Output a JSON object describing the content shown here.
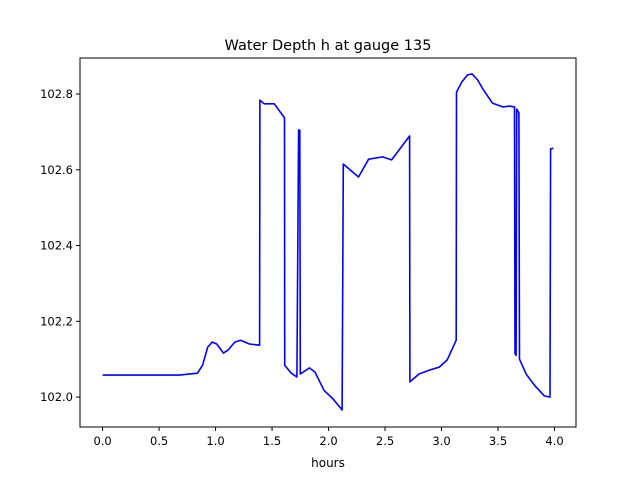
{
  "chart_data": {
    "type": "line",
    "title": "Water Depth h at gauge 135",
    "xlabel": "hours",
    "ylabel": "",
    "xlim": [
      -0.2,
      4.19
    ],
    "ylim": [
      101.921,
      102.895
    ],
    "xticks": [
      0.0,
      0.5,
      1.0,
      1.5,
      2.0,
      2.5,
      3.0,
      3.5,
      4.0
    ],
    "xtick_labels": [
      "0.0",
      "0.5",
      "1.0",
      "1.5",
      "2.0",
      "2.5",
      "3.0",
      "3.5",
      "4.0"
    ],
    "yticks": [
      102.0,
      102.2,
      102.4,
      102.6,
      102.8
    ],
    "ytick_labels": [
      "102.0",
      "102.2",
      "102.4",
      "102.6",
      "102.8"
    ],
    "grid": false,
    "series": [
      {
        "name": "h",
        "color": "#0000ff",
        "x": [
          0.0,
          0.68,
          0.84,
          0.885,
          0.93,
          0.97,
          1.01,
          1.07,
          1.11,
          1.17,
          1.22,
          1.3,
          1.39,
          1.392,
          1.43,
          1.52,
          1.61,
          1.612,
          1.67,
          1.72,
          1.735,
          1.745,
          1.75,
          1.83,
          1.88,
          1.96,
          2.04,
          2.12,
          2.13,
          2.17,
          2.265,
          2.354,
          2.478,
          2.558,
          2.717,
          2.72,
          2.8,
          2.89,
          2.98,
          3.05,
          3.13,
          3.132,
          3.18,
          3.23,
          3.27,
          3.32,
          3.36,
          3.45,
          3.54,
          3.6,
          3.646,
          3.65,
          3.66,
          3.665,
          3.685,
          3.69,
          3.75,
          3.82,
          3.91,
          3.96,
          3.965,
          3.99
        ],
        "y": [
          102.058,
          102.058,
          102.063,
          102.084,
          102.132,
          102.145,
          102.14,
          102.116,
          102.124,
          102.145,
          102.15,
          102.14,
          102.137,
          102.784,
          102.774,
          102.774,
          102.737,
          102.084,
          102.063,
          102.053,
          102.705,
          102.705,
          102.061,
          102.077,
          102.066,
          102.018,
          101.995,
          101.966,
          102.615,
          102.605,
          102.581,
          102.628,
          102.634,
          102.626,
          102.689,
          102.04,
          102.061,
          102.071,
          102.079,
          102.098,
          102.15,
          102.805,
          102.832,
          102.85,
          102.853,
          102.837,
          102.816,
          102.776,
          102.766,
          102.768,
          102.766,
          102.115,
          102.11,
          102.76,
          102.75,
          102.1,
          102.06,
          102.032,
          102.003,
          102.0,
          102.655,
          102.657
        ]
      }
    ]
  }
}
